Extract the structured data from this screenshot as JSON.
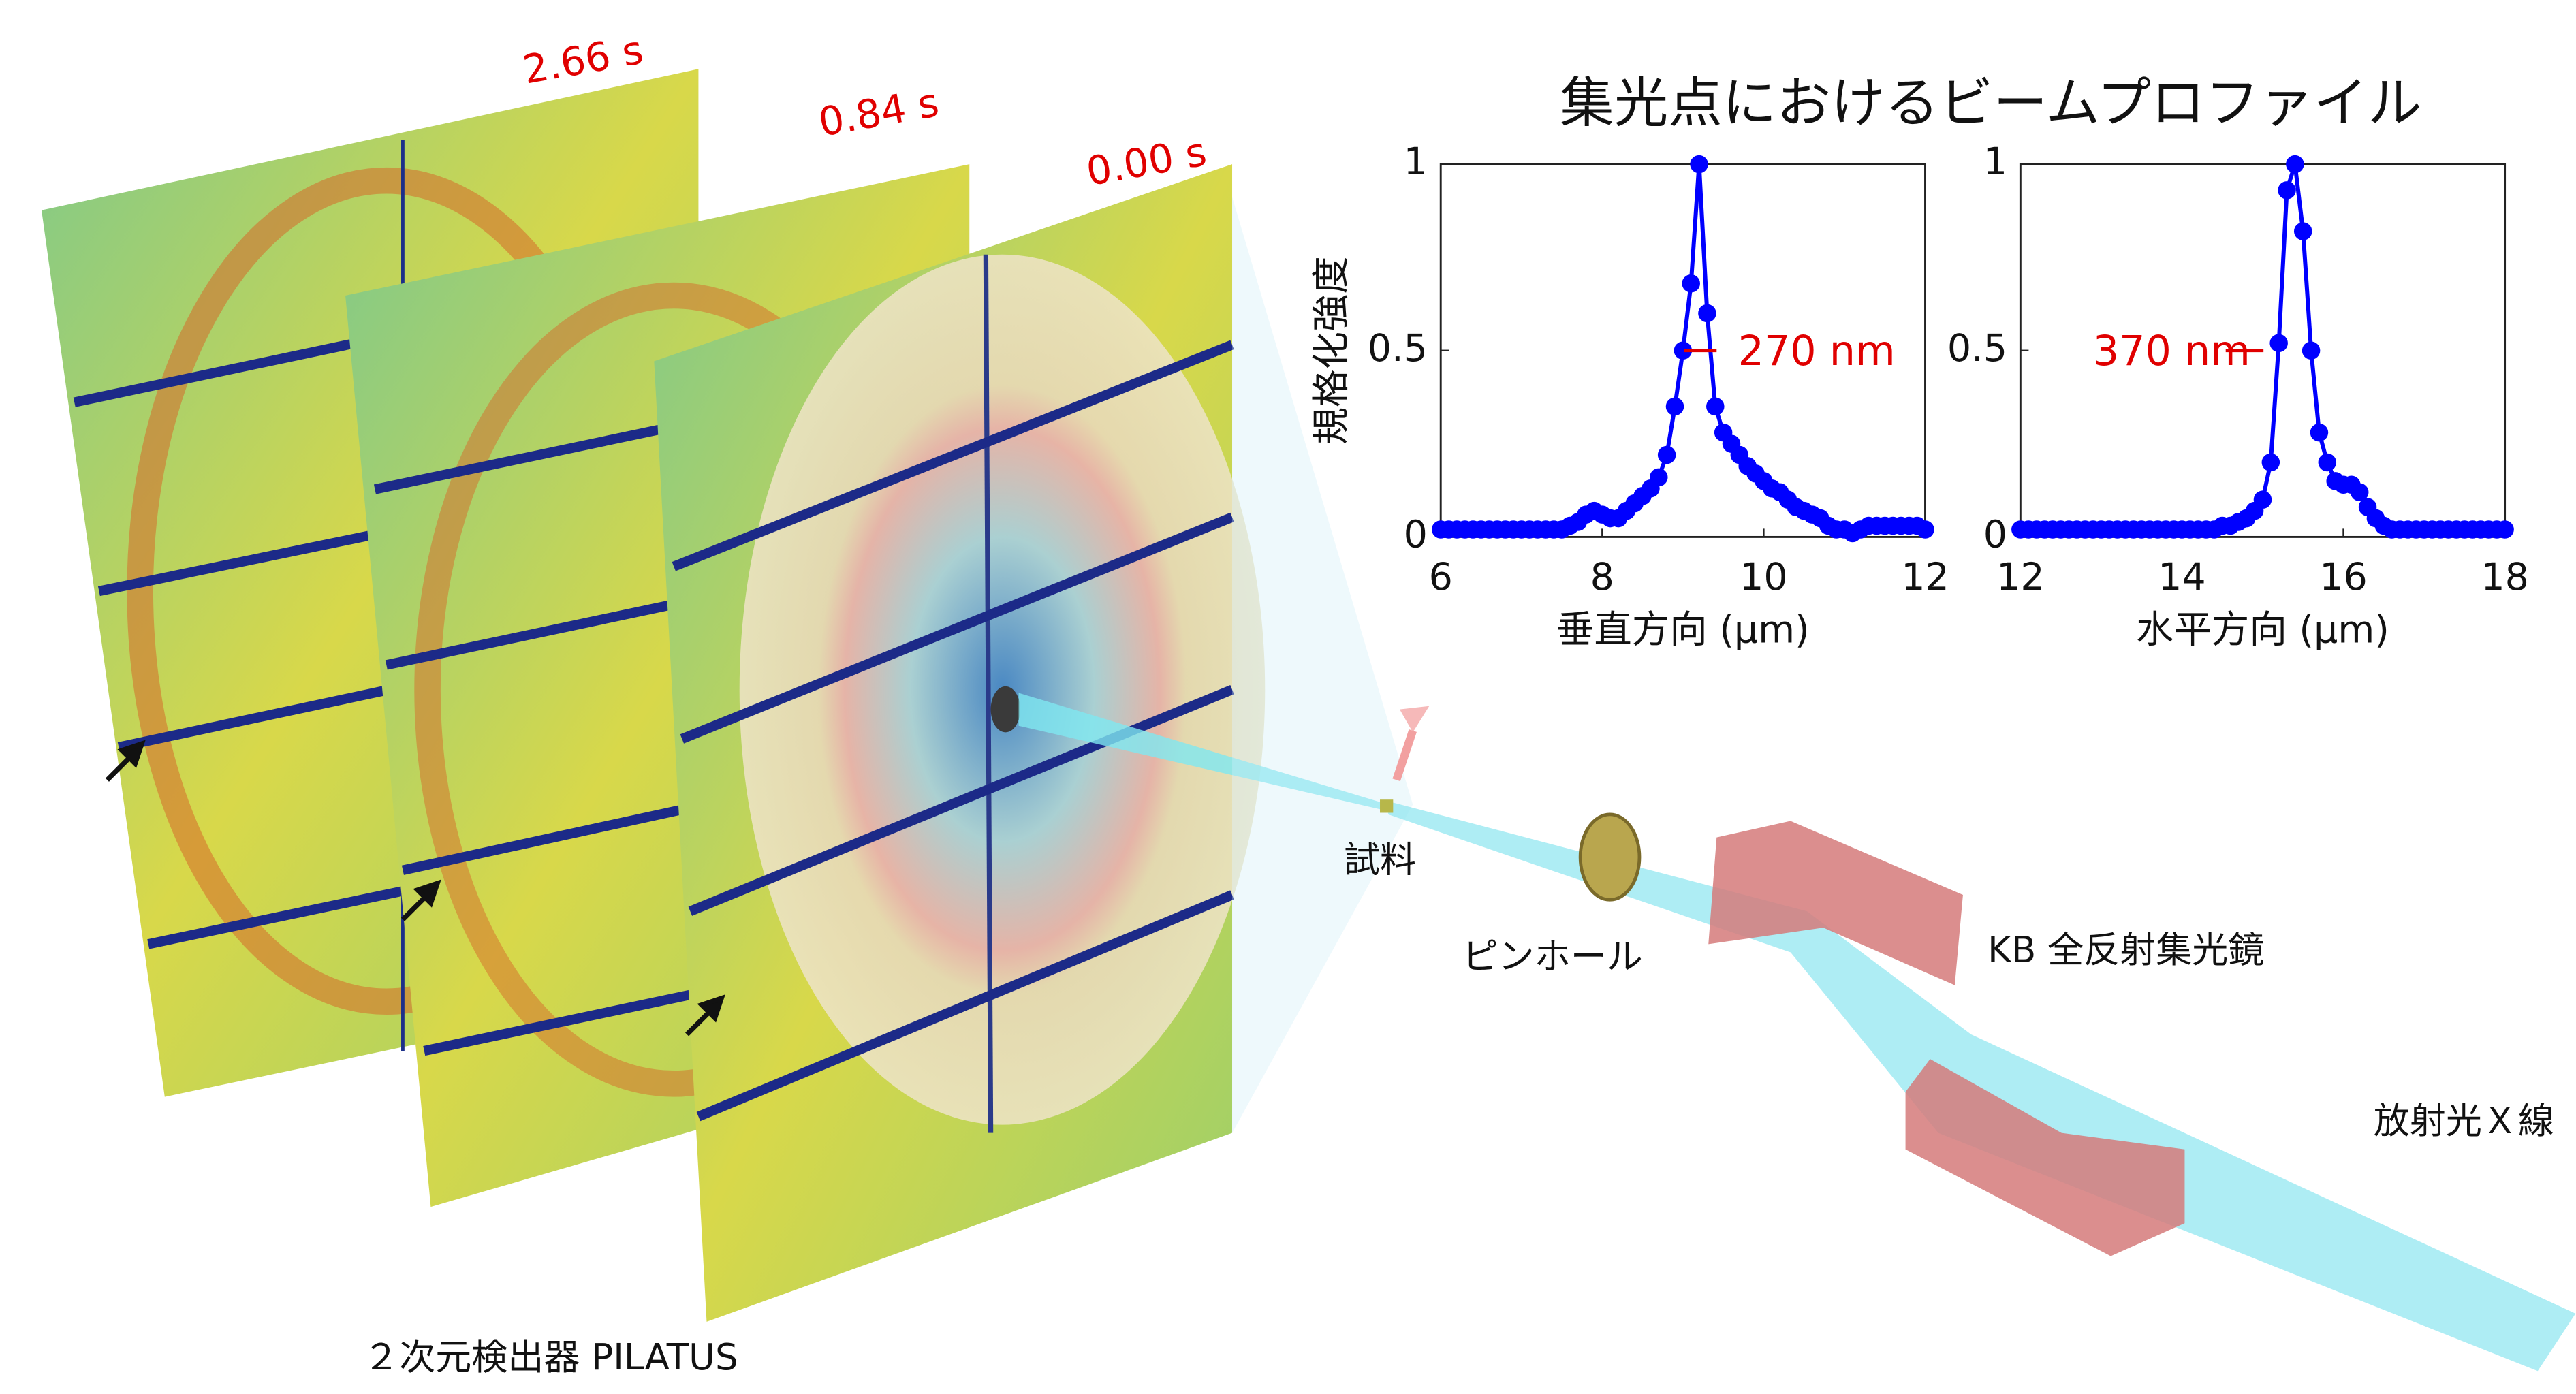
{
  "title": "集光点におけるビームプロファイル",
  "chart_data": [
    {
      "type": "line",
      "xlabel": "垂直方向 (μm)",
      "ylabel": "規格化強度",
      "annotation": "270 nm",
      "xlim": [
        6,
        12
      ],
      "ylim": [
        0,
        1
      ],
      "xticks": [
        6,
        8,
        10,
        12
      ],
      "yticks": [
        0,
        0.5,
        1
      ],
      "series": [
        {
          "color": "#0000ff",
          "x": [
            6.0,
            6.1,
            6.2,
            6.3,
            6.4,
            6.5,
            6.6,
            6.7,
            6.8,
            6.9,
            7.0,
            7.1,
            7.2,
            7.3,
            7.4,
            7.5,
            7.6,
            7.7,
            7.8,
            7.9,
            8.0,
            8.1,
            8.2,
            8.3,
            8.4,
            8.5,
            8.6,
            8.7,
            8.8,
            8.9,
            9.0,
            9.1,
            9.2,
            9.3,
            9.4,
            9.5,
            9.6,
            9.7,
            9.8,
            9.9,
            10.0,
            10.1,
            10.2,
            10.3,
            10.4,
            10.5,
            10.6,
            10.7,
            10.8,
            10.9,
            11.0,
            11.1,
            11.2,
            11.3,
            11.4,
            11.5,
            11.6,
            11.7,
            11.8,
            11.9,
            12.0
          ],
          "values": [
            0.02,
            0.02,
            0.02,
            0.02,
            0.02,
            0.02,
            0.02,
            0.02,
            0.02,
            0.02,
            0.02,
            0.02,
            0.02,
            0.02,
            0.02,
            0.02,
            0.03,
            0.04,
            0.06,
            0.07,
            0.06,
            0.05,
            0.05,
            0.07,
            0.09,
            0.11,
            0.13,
            0.16,
            0.22,
            0.35,
            0.5,
            0.68,
            1.0,
            0.6,
            0.35,
            0.28,
            0.25,
            0.22,
            0.19,
            0.17,
            0.15,
            0.13,
            0.12,
            0.1,
            0.08,
            0.07,
            0.06,
            0.05,
            0.03,
            0.02,
            0.02,
            0.01,
            0.02,
            0.03,
            0.03,
            0.03,
            0.03,
            0.03,
            0.03,
            0.03,
            0.02
          ]
        }
      ]
    },
    {
      "type": "line",
      "xlabel": "水平方向 (μm)",
      "annotation": "370 nm",
      "xlim": [
        12,
        18
      ],
      "ylim": [
        0,
        1
      ],
      "xticks": [
        12,
        14,
        16,
        18
      ],
      "yticks": [
        0,
        0.5,
        1
      ],
      "series": [
        {
          "color": "#0000ff",
          "x": [
            12.0,
            12.1,
            12.2,
            12.3,
            12.4,
            12.5,
            12.6,
            12.7,
            12.8,
            12.9,
            13.0,
            13.1,
            13.2,
            13.3,
            13.4,
            13.5,
            13.6,
            13.7,
            13.8,
            13.9,
            14.0,
            14.1,
            14.2,
            14.3,
            14.4,
            14.5,
            14.6,
            14.7,
            14.8,
            14.9,
            15.0,
            15.1,
            15.2,
            15.3,
            15.4,
            15.5,
            15.6,
            15.7,
            15.8,
            15.9,
            16.0,
            16.1,
            16.2,
            16.3,
            16.4,
            16.5,
            16.6,
            16.7,
            16.8,
            16.9,
            17.0,
            17.1,
            17.2,
            17.3,
            17.4,
            17.5,
            17.6,
            17.7,
            17.8,
            17.9,
            18.0
          ],
          "values": [
            0.02,
            0.02,
            0.02,
            0.02,
            0.02,
            0.02,
            0.02,
            0.02,
            0.02,
            0.02,
            0.02,
            0.02,
            0.02,
            0.02,
            0.02,
            0.02,
            0.02,
            0.02,
            0.02,
            0.02,
            0.02,
            0.02,
            0.02,
            0.02,
            0.02,
            0.03,
            0.03,
            0.04,
            0.05,
            0.07,
            0.1,
            0.2,
            0.52,
            0.93,
            1.0,
            0.82,
            0.5,
            0.28,
            0.2,
            0.15,
            0.14,
            0.14,
            0.12,
            0.08,
            0.05,
            0.03,
            0.02,
            0.02,
            0.02,
            0.02,
            0.02,
            0.02,
            0.02,
            0.02,
            0.02,
            0.02,
            0.02,
            0.02,
            0.02,
            0.02,
            0.02
          ]
        }
      ]
    }
  ],
  "diagram": {
    "times": [
      "2.66 s",
      "0.84 s",
      "0.00 s"
    ],
    "sample": "試料",
    "pinhole": "ピンホール",
    "mirror": "KB 全反射集光鏡",
    "source": "放射光Ｘ線",
    "detector": "２次元検出器 PILATUS"
  }
}
